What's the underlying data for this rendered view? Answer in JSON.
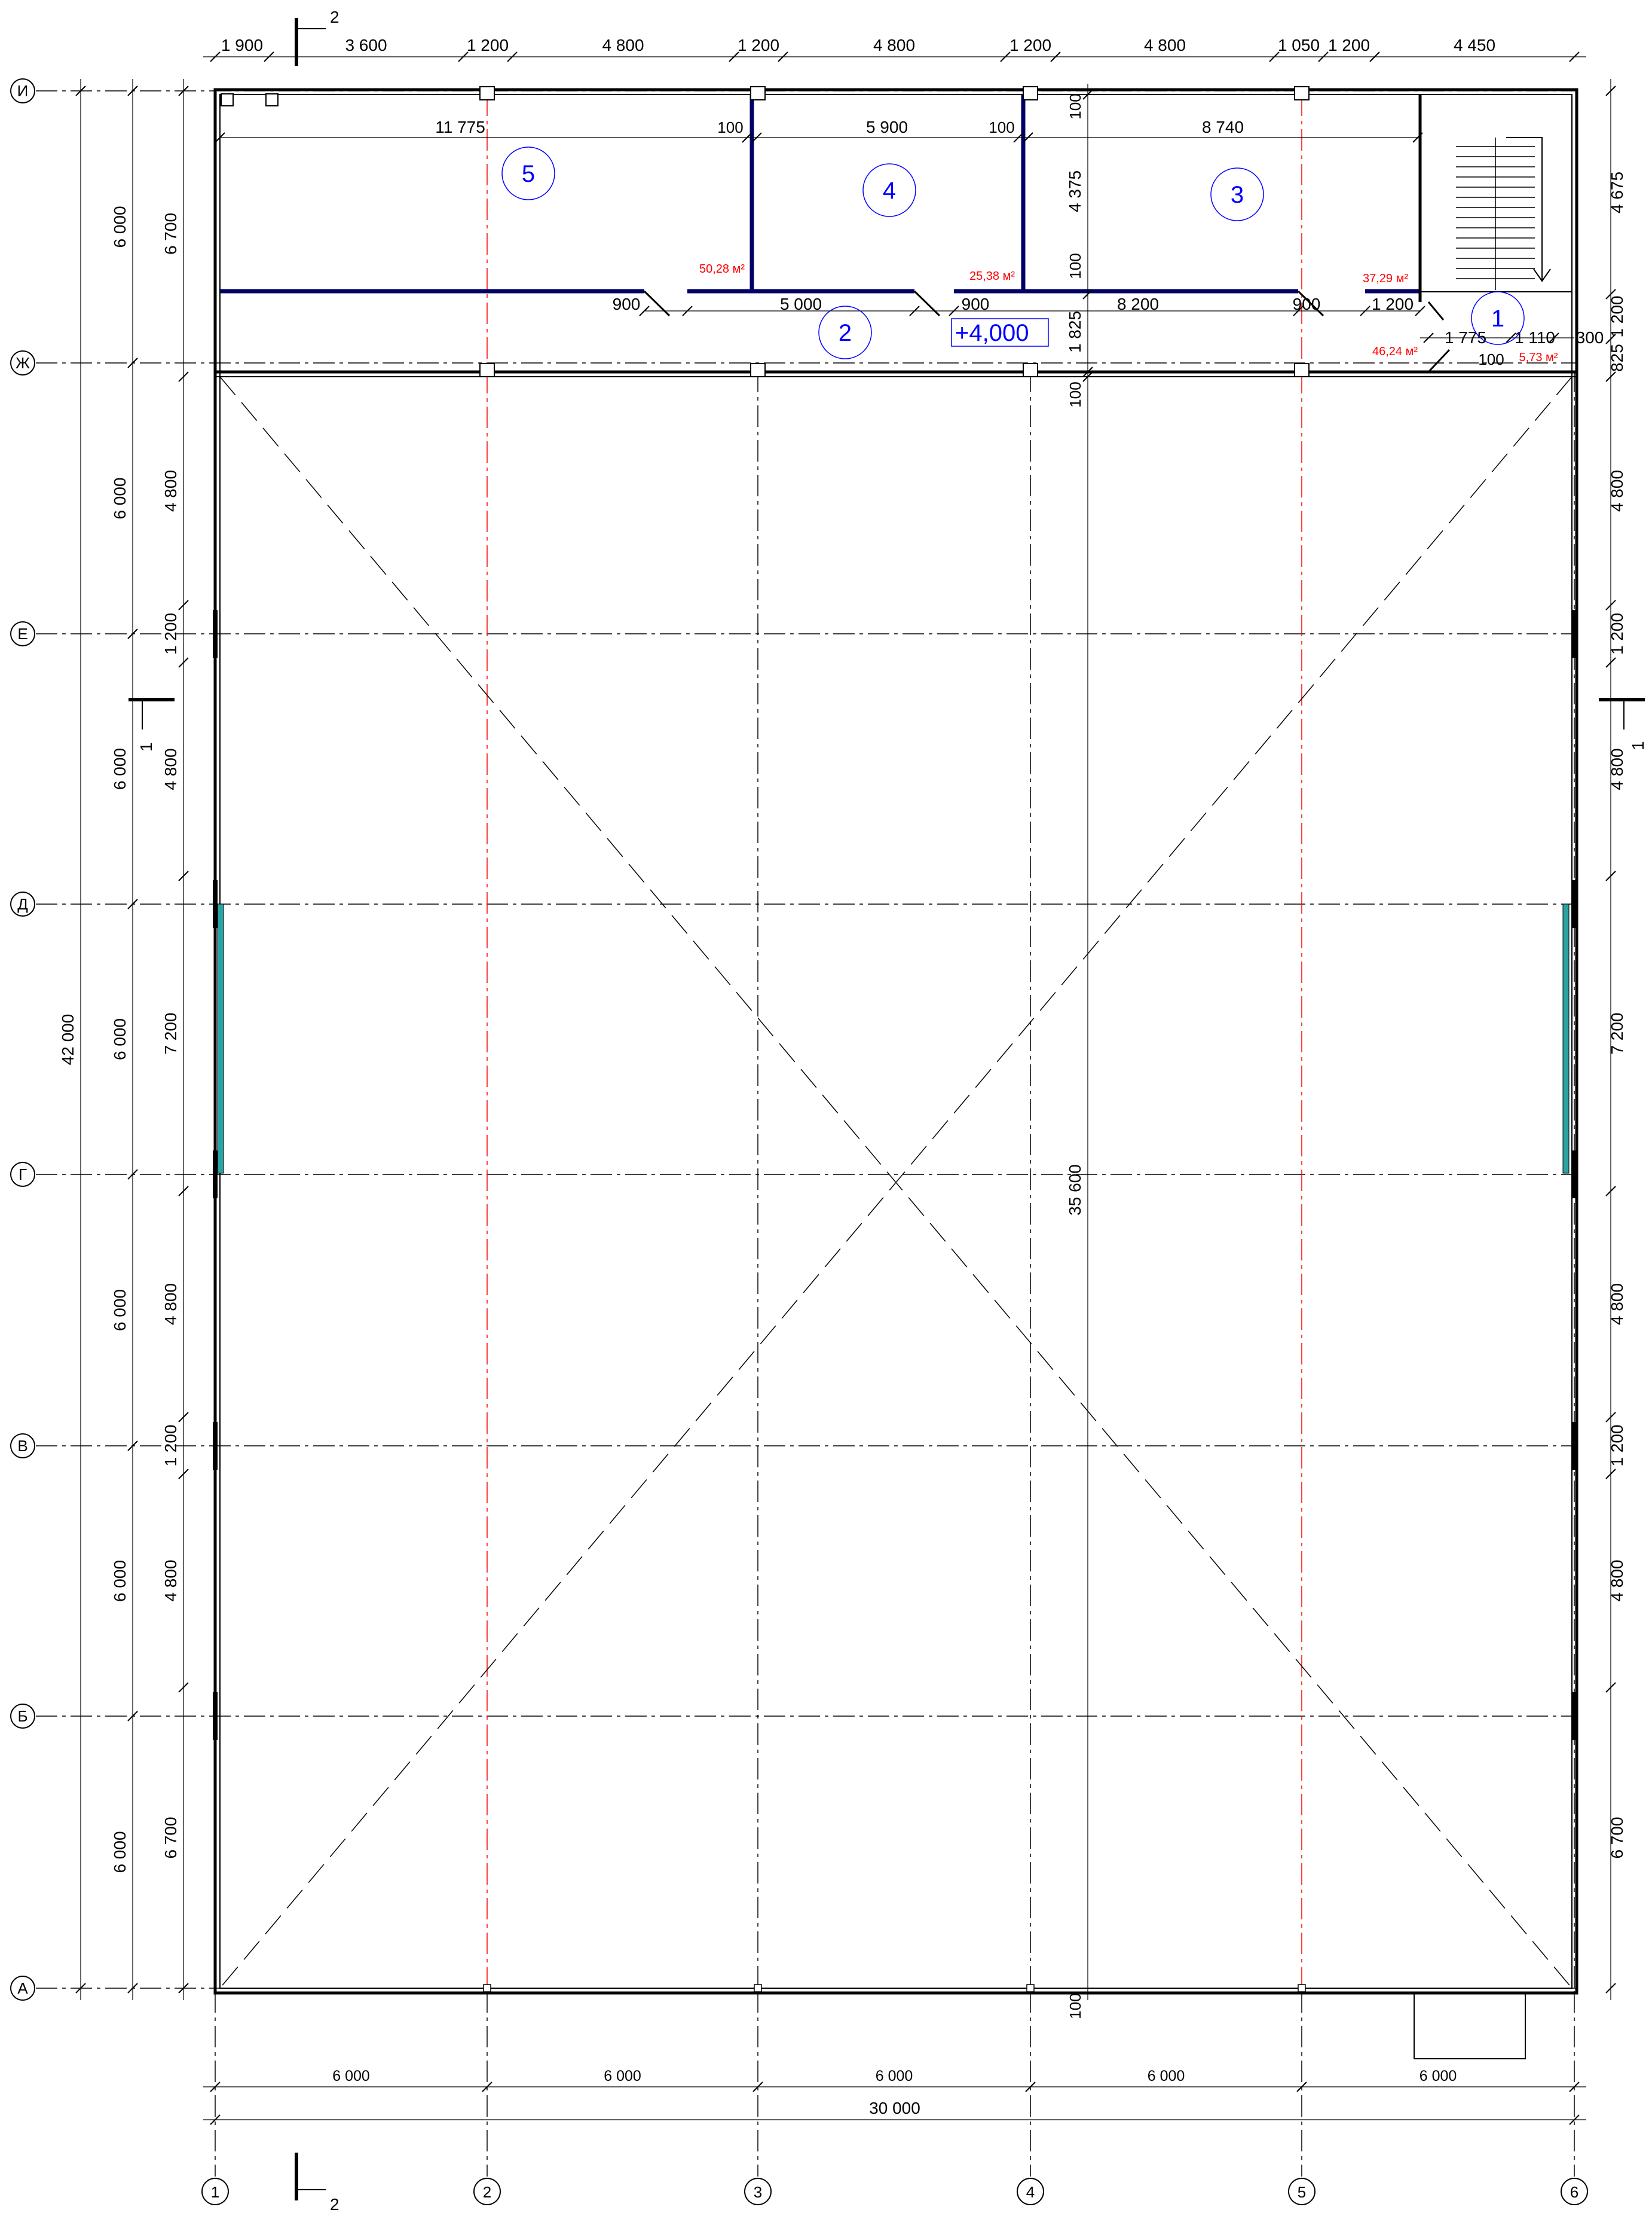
{
  "drawing": {
    "elevation_mark": "+4,000",
    "section_marks": {
      "section_1": "1",
      "section_2": "2"
    },
    "colors": {
      "room_circle": "#0000ff",
      "area_text": "#ff0000",
      "axis_red": "#ff0000",
      "glazing": "#2aa3a3",
      "partition": "#0000aa"
    }
  },
  "axes": {
    "columns": [
      "1",
      "2",
      "3",
      "4",
      "5",
      "6"
    ],
    "rows_top_to_bottom": [
      "И",
      "Ж",
      "Е",
      "Д",
      "Г",
      "В",
      "Б",
      "А"
    ]
  },
  "dims": {
    "top": [
      "1 900",
      "3 600",
      "1 200",
      "4 800",
      "1 200",
      "4 800",
      "1 200",
      "4 800",
      "1 050",
      "1 200",
      "4 450"
    ],
    "bottom_spans": [
      "6 000",
      "6 000",
      "6 000",
      "6 000",
      "6 000"
    ],
    "bottom_total": "30 000",
    "left_outer": [
      "6 000",
      "6 000",
      "6 000",
      "6 000",
      "6 000",
      "6 000",
      "6 000"
    ],
    "left_total": "42 000",
    "left_inner": [
      "6 700",
      "4 800",
      "1 200",
      "4 800",
      "7 200",
      "4 800",
      "1 200",
      "4 800",
      "6 700"
    ],
    "right": [
      "4 675",
      "1 200",
      "825",
      "4 800",
      "1 200",
      "4 800",
      "7 200",
      "4 800",
      "1 200",
      "4 800",
      "6 700"
    ],
    "inner": {
      "room5_width": "11 775",
      "room4_width": "5 900",
      "room3_width": "8 740",
      "wall_a": "100",
      "wall_b": "100",
      "room_depth": "4 375",
      "wall_c": "100",
      "door_1": "900",
      "corridor_a": "5 000",
      "door_2": "900",
      "corridor_b": "8 200",
      "door_3": "900",
      "door_4": "1 200",
      "corridor_depth": "1 825",
      "w1": "1 775",
      "w2": "1 110",
      "w3": "300",
      "w4": "100",
      "wall_d": "100",
      "hall_length": "35 600",
      "wall_e": "100"
    }
  },
  "rooms": [
    {
      "num": "1",
      "area": "5,73 м²"
    },
    {
      "num": "2",
      "area": "46,24 м²"
    },
    {
      "num": "3",
      "area": "37,29 м²"
    },
    {
      "num": "4",
      "area": "25,38 м²"
    },
    {
      "num": "5",
      "area": "50,28 м²"
    }
  ]
}
